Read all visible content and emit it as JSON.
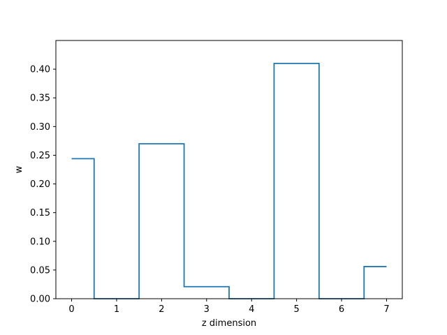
{
  "chart_data": {
    "type": "line",
    "step": "mid",
    "x": [
      0,
      1,
      2,
      3,
      4,
      5,
      6,
      7
    ],
    "series": [
      {
        "values": [
          0.244,
          0.0,
          0.27,
          0.021,
          0.0,
          0.41,
          0.0,
          0.056
        ],
        "color": "#1f77b4"
      }
    ],
    "title": "",
    "xlabel": "z dimension",
    "ylabel": "w",
    "xlim": [
      -0.35,
      7.35
    ],
    "ylim": [
      0,
      0.45
    ],
    "xticks": [
      "0",
      "1",
      "2",
      "3",
      "4",
      "5",
      "6",
      "7"
    ],
    "yticks": [
      "0.00",
      "0.05",
      "0.10",
      "0.15",
      "0.20",
      "0.25",
      "0.30",
      "0.35",
      "0.40"
    ],
    "grid": false,
    "legend": "none"
  }
}
